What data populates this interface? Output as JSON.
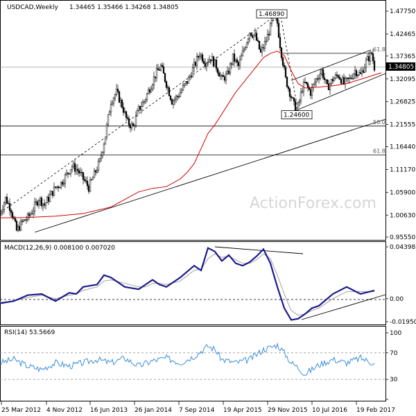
{
  "chart_data": {
    "type": "candlestick",
    "price_panel": {
      "symbol_label": "USDCAD,Weekly",
      "ohlc_label": "1.34465 1.35466 1.34268 1.34805",
      "current_price": "1.34805",
      "y_ticks": [
        "1.47750",
        "1.42465",
        "1.37365",
        "1.32095",
        "1.26825",
        "1.21555",
        "1.16440",
        "1.11170",
        "1.05900",
        "1.00630",
        "0.95550"
      ],
      "ylim": [
        0.9555,
        1.4775
      ],
      "annotations": [
        {
          "text": "1.46890",
          "x": 200,
          "y": 1.4689
        },
        {
          "text": "1.24600",
          "x": 218,
          "y": 1.246
        }
      ],
      "fib_labels": [
        {
          "text": "61.8",
          "level": 1.38
        },
        {
          "text": "50.0",
          "level": 1.212
        },
        {
          "text": "61.8",
          "level": 1.145
        }
      ],
      "horizontal_levels": [
        1.348,
        1.38,
        1.212,
        1.145
      ],
      "watermark": "ActionForex.com",
      "ma_x": [
        0,
        20,
        40,
        60,
        80,
        100,
        110,
        120,
        130,
        135,
        140,
        145,
        150,
        155,
        160,
        165,
        170,
        175,
        180,
        185,
        190,
        195,
        200,
        205,
        210,
        215,
        220,
        230,
        240,
        250,
        260,
        275
      ],
      "ma_values": [
        1.0,
        1.001,
        1.004,
        1.01,
        1.025,
        1.06,
        1.068,
        1.072,
        1.09,
        1.105,
        1.125,
        1.16,
        1.195,
        1.215,
        1.24,
        1.265,
        1.29,
        1.31,
        1.33,
        1.35,
        1.37,
        1.38,
        1.385,
        1.375,
        1.34,
        1.31,
        1.3,
        1.302,
        1.305,
        1.31,
        1.32,
        1.335
      ],
      "closes_x": [
        0,
        4,
        8,
        12,
        16,
        20,
        24,
        28,
        32,
        36,
        40,
        44,
        48,
        52,
        56,
        60,
        64,
        68,
        72,
        76,
        80,
        84,
        88,
        92,
        96,
        100,
        104,
        108,
        112,
        116,
        120,
        124,
        128,
        132,
        136,
        140,
        144,
        148,
        152,
        156,
        160,
        164,
        168,
        172,
        176,
        180,
        184,
        188,
        192,
        196,
        198,
        200,
        202,
        204,
        206,
        208,
        210,
        212,
        214,
        216,
        218,
        220,
        224,
        228,
        232,
        236,
        240,
        244,
        248,
        252,
        256,
        260,
        264,
        268,
        270
      ],
      "closes": [
        1.01,
        1.045,
        1.02,
        0.97,
        0.99,
        1.0,
        1.02,
        1.045,
        1.03,
        1.05,
        1.07,
        1.08,
        1.1,
        1.12,
        1.11,
        1.09,
        1.07,
        1.1,
        1.13,
        1.19,
        1.27,
        1.29,
        1.26,
        1.22,
        1.21,
        1.25,
        1.27,
        1.3,
        1.33,
        1.35,
        1.31,
        1.27,
        1.28,
        1.3,
        1.32,
        1.35,
        1.38,
        1.36,
        1.37,
        1.35,
        1.32,
        1.33,
        1.37,
        1.35,
        1.39,
        1.43,
        1.42,
        1.38,
        1.41,
        1.45,
        1.465,
        1.45,
        1.4,
        1.36,
        1.32,
        1.3,
        1.28,
        1.26,
        1.247,
        1.27,
        1.3,
        1.31,
        1.29,
        1.32,
        1.34,
        1.3,
        1.32,
        1.33,
        1.31,
        1.32,
        1.34,
        1.33,
        1.36,
        1.38,
        1.348
      ]
    },
    "macd_panel": {
      "label": "MACD(12,26,9) 0.008100 0.007020",
      "y_ticks": [
        "0.043983",
        "0.00",
        "-0.019501"
      ],
      "ylim": [
        -0.0195,
        0.044
      ],
      "macd_x": [
        0,
        10,
        20,
        30,
        40,
        50,
        55,
        60,
        70,
        75,
        80,
        90,
        100,
        105,
        110,
        115,
        120,
        130,
        140,
        145,
        150,
        155,
        160,
        165,
        170,
        175,
        180,
        185,
        190,
        195,
        200,
        205,
        210,
        215,
        220,
        225,
        230,
        240,
        250,
        260,
        270
      ],
      "macd": [
        -0.004,
        -0.002,
        0.003,
        0.004,
        -0.002,
        0.005,
        0.004,
        0.01,
        0.012,
        0.02,
        0.018,
        0.01,
        0.008,
        0.012,
        0.016,
        0.012,
        0.01,
        0.018,
        0.028,
        0.024,
        0.043,
        0.04,
        0.032,
        0.037,
        0.03,
        0.028,
        0.031,
        0.036,
        0.042,
        0.03,
        0.01,
        -0.008,
        -0.018,
        -0.017,
        -0.013,
        -0.008,
        -0.006,
        0.004,
        0.01,
        0.004,
        0.007
      ],
      "signal": [
        -0.003,
        -0.002,
        0.001,
        0.003,
        0.0,
        0.003,
        0.004,
        0.007,
        0.01,
        0.015,
        0.016,
        0.013,
        0.01,
        0.01,
        0.013,
        0.013,
        0.012,
        0.015,
        0.024,
        0.025,
        0.034,
        0.038,
        0.035,
        0.036,
        0.033,
        0.03,
        0.03,
        0.033,
        0.038,
        0.034,
        0.02,
        0.004,
        -0.01,
        -0.014,
        -0.013,
        -0.01,
        -0.008,
        0.0,
        0.006,
        0.006,
        0.006
      ]
    },
    "rsi_panel": {
      "label": "RSI(14) 53.5669",
      "y_ticks": [
        "100",
        "70",
        "30",
        "0"
      ],
      "ylim": [
        0,
        100
      ],
      "levels": [
        70,
        30
      ],
      "rsi_x": [
        0,
        10,
        20,
        30,
        40,
        50,
        60,
        70,
        80,
        90,
        100,
        110,
        120,
        130,
        140,
        150,
        155,
        160,
        170,
        180,
        190,
        195,
        200,
        205,
        210,
        215,
        220,
        230,
        240,
        250,
        260,
        270
      ],
      "rsi": [
        55,
        60,
        50,
        45,
        55,
        50,
        55,
        60,
        55,
        62,
        50,
        58,
        62,
        55,
        65,
        80,
        75,
        60,
        55,
        60,
        75,
        78,
        82,
        70,
        55,
        48,
        38,
        52,
        60,
        55,
        62,
        54
      ]
    },
    "x_ticks": [
      "25 Mar 2012",
      "4 Nov 2012",
      "16 Jun 2013",
      "26 Jan 2014",
      "7 Sep 2014",
      "19 Apr 2015",
      "29 Nov 2015",
      "10 Jul 2016",
      "19 Feb 2017"
    ]
  }
}
